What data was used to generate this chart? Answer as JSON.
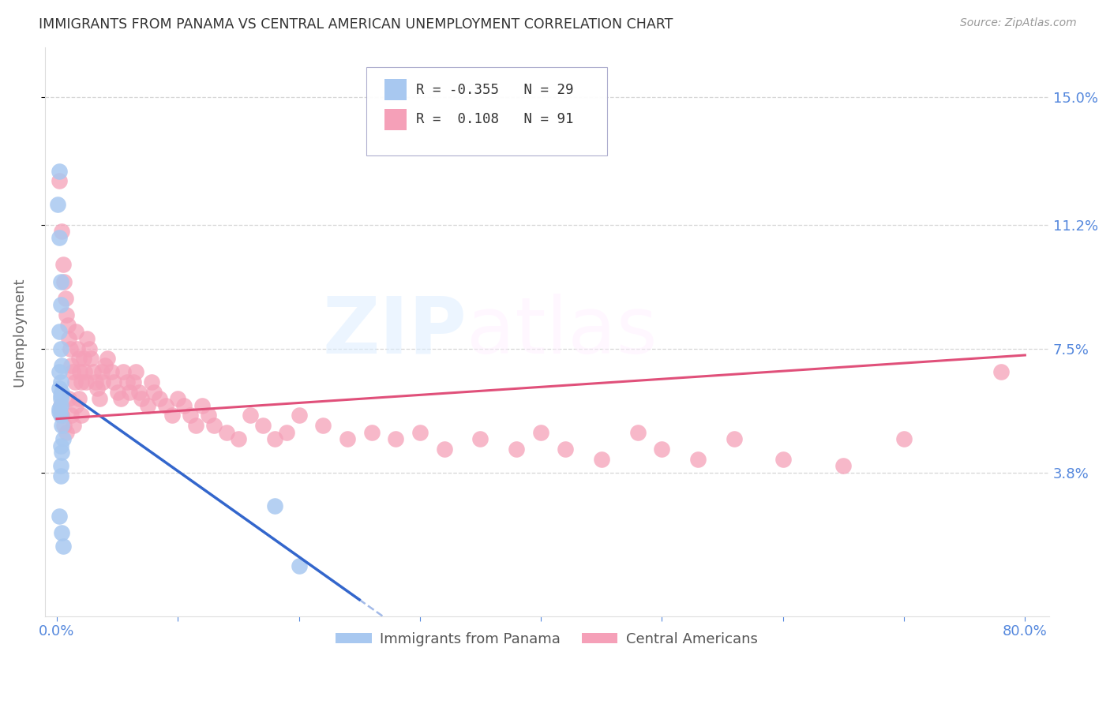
{
  "title": "IMMIGRANTS FROM PANAMA VS CENTRAL AMERICAN UNEMPLOYMENT CORRELATION CHART",
  "source": "Source: ZipAtlas.com",
  "ylabel": "Unemployment",
  "xlim": [
    -0.01,
    0.82
  ],
  "ylim": [
    -0.005,
    0.165
  ],
  "yticks": [
    0.038,
    0.075,
    0.112,
    0.15
  ],
  "ytick_labels": [
    "3.8%",
    "7.5%",
    "11.2%",
    "15.0%"
  ],
  "xticks": [
    0.0,
    0.1,
    0.2,
    0.3,
    0.4,
    0.5,
    0.6,
    0.7,
    0.8
  ],
  "panama_color": "#a8c8f0",
  "central_color": "#f5a0b8",
  "panama_line_color": "#3366cc",
  "central_line_color": "#e0507a",
  "grid_color": "#cccccc",
  "axis_label_color": "#5588dd",
  "watermark": "ZIPatlas",
  "legend_r_panama": "-0.355",
  "legend_n_panama": "29",
  "legend_r_central": "0.108",
  "legend_n_central": "91",
  "panama_line_x0": 0.0,
  "panama_line_y0": 0.064,
  "panama_line_x1": 0.25,
  "panama_line_y1": 0.0,
  "panama_line_dash_x1": 0.36,
  "central_line_x0": 0.0,
  "central_line_y0": 0.054,
  "central_line_x1": 0.8,
  "central_line_y1": 0.073,
  "panama_x": [
    0.002,
    0.001,
    0.002,
    0.003,
    0.003,
    0.002,
    0.003,
    0.004,
    0.002,
    0.003,
    0.004,
    0.003,
    0.002,
    0.003,
    0.004,
    0.005,
    0.004,
    0.003,
    0.002,
    0.003,
    0.18,
    0.003,
    0.002,
    0.2,
    0.003,
    0.003,
    0.002,
    0.004,
    0.005
  ],
  "panama_y": [
    0.128,
    0.118,
    0.108,
    0.095,
    0.088,
    0.08,
    0.075,
    0.07,
    0.068,
    0.065,
    0.062,
    0.06,
    0.057,
    0.055,
    0.052,
    0.048,
    0.044,
    0.04,
    0.063,
    0.061,
    0.028,
    0.058,
    0.056,
    0.01,
    0.046,
    0.037,
    0.025,
    0.02,
    0.016
  ],
  "central_x": [
    0.002,
    0.004,
    0.005,
    0.006,
    0.007,
    0.008,
    0.009,
    0.01,
    0.011,
    0.012,
    0.013,
    0.015,
    0.016,
    0.017,
    0.018,
    0.019,
    0.02,
    0.022,
    0.023,
    0.024,
    0.025,
    0.027,
    0.028,
    0.03,
    0.032,
    0.033,
    0.035,
    0.037,
    0.038,
    0.04,
    0.042,
    0.045,
    0.047,
    0.05,
    0.053,
    0.055,
    0.058,
    0.06,
    0.063,
    0.065,
    0.068,
    0.07,
    0.075,
    0.078,
    0.08,
    0.085,
    0.09,
    0.095,
    0.1,
    0.105,
    0.11,
    0.115,
    0.12,
    0.125,
    0.13,
    0.14,
    0.15,
    0.16,
    0.17,
    0.18,
    0.19,
    0.2,
    0.22,
    0.24,
    0.26,
    0.28,
    0.3,
    0.32,
    0.35,
    0.38,
    0.4,
    0.42,
    0.45,
    0.48,
    0.5,
    0.53,
    0.56,
    0.6,
    0.65,
    0.7,
    0.003,
    0.004,
    0.006,
    0.008,
    0.01,
    0.012,
    0.014,
    0.016,
    0.018,
    0.02,
    0.78
  ],
  "central_y": [
    0.125,
    0.11,
    0.1,
    0.095,
    0.09,
    0.085,
    0.082,
    0.078,
    0.075,
    0.07,
    0.068,
    0.065,
    0.08,
    0.075,
    0.072,
    0.068,
    0.065,
    0.072,
    0.068,
    0.065,
    0.078,
    0.075,
    0.072,
    0.068,
    0.065,
    0.063,
    0.06,
    0.068,
    0.065,
    0.07,
    0.072,
    0.068,
    0.065,
    0.062,
    0.06,
    0.068,
    0.065,
    0.062,
    0.065,
    0.068,
    0.062,
    0.06,
    0.058,
    0.065,
    0.062,
    0.06,
    0.058,
    0.055,
    0.06,
    0.058,
    0.055,
    0.052,
    0.058,
    0.055,
    0.052,
    0.05,
    0.048,
    0.055,
    0.052,
    0.048,
    0.05,
    0.055,
    0.052,
    0.048,
    0.05,
    0.048,
    0.05,
    0.045,
    0.048,
    0.045,
    0.05,
    0.045,
    0.042,
    0.05,
    0.045,
    0.042,
    0.048,
    0.042,
    0.04,
    0.048,
    0.058,
    0.055,
    0.052,
    0.05,
    0.06,
    0.055,
    0.052,
    0.058,
    0.06,
    0.055,
    0.068
  ]
}
